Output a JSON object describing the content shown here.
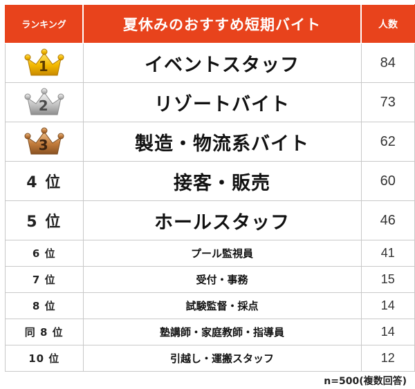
{
  "header": {
    "rank_label": "ランキング",
    "title": "夏休みのおすすめ短期バイト",
    "count_label": "人数"
  },
  "rows": [
    {
      "rank": "1",
      "job": "イベントスタッフ",
      "count": "84",
      "medal": "gold"
    },
    {
      "rank": "2",
      "job": "リゾートバイト",
      "count": "73",
      "medal": "silver"
    },
    {
      "rank": "3",
      "job": "製造・物流系バイト",
      "count": "62",
      "medal": "bronze"
    },
    {
      "rank": "4 位",
      "job": "接客・販売",
      "count": "60"
    },
    {
      "rank": "5 位",
      "job": "ホールスタッフ",
      "count": "46"
    },
    {
      "rank": "6 位",
      "job": "プール監視員",
      "count": "41"
    },
    {
      "rank": "7 位",
      "job": "受付・事務",
      "count": "15"
    },
    {
      "rank": "8 位",
      "job": "試験監督・採点",
      "count": "14"
    },
    {
      "rank": "同 8 位",
      "job": "塾講師・家庭教師・指導員",
      "count": "14"
    },
    {
      "rank": "10 位",
      "job": "引越し・運搬スタッフ",
      "count": "12"
    }
  ],
  "footnote": "n=500(複数回答)",
  "colors": {
    "header_bg": "#e8431c",
    "gold": "#f2b800",
    "silver": "#c4c4c4",
    "bronze": "#c07a3a"
  },
  "icons": {
    "gold": "crown-gold-icon",
    "silver": "crown-silver-icon",
    "bronze": "crown-bronze-icon"
  }
}
